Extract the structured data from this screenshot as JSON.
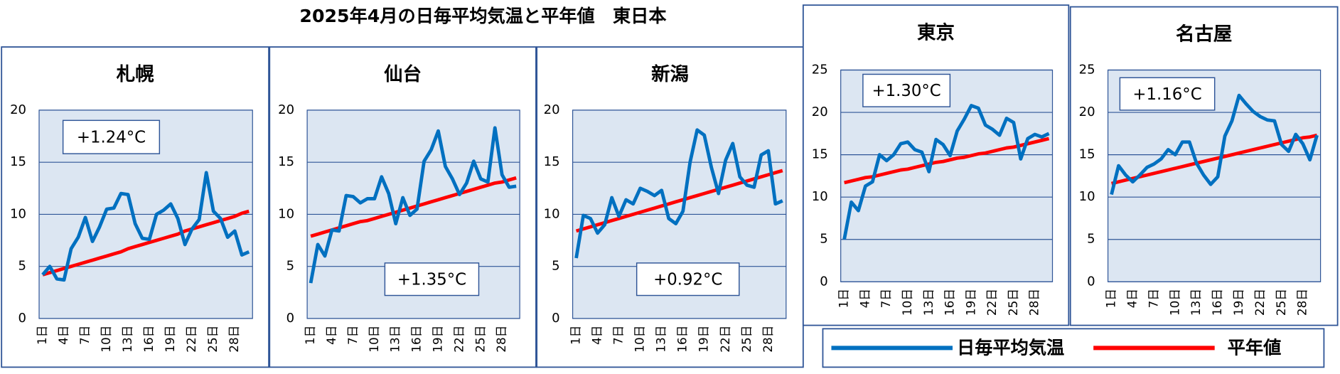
{
  "title": "2025年4月の日毎平均気温と平年値　東日本",
  "chart_data": [
    {
      "type": "line",
      "title": "札幌",
      "annotation": "+1.24°C",
      "grid": true,
      "categories": [
        "1日",
        null,
        null,
        "4日",
        null,
        null,
        "7日",
        null,
        null,
        "10日",
        null,
        null,
        "13日",
        null,
        null,
        "16日",
        null,
        null,
        "19日",
        null,
        null,
        "22日",
        null,
        null,
        "25日",
        null,
        null,
        "28日",
        null,
        null
      ],
      "ylim": [
        0,
        20
      ],
      "yticks": [
        0,
        5,
        10,
        15,
        20
      ],
      "series": [
        {
          "name": "日毎平均気温",
          "color": "#0070c0",
          "values": [
            4.2,
            5.0,
            3.8,
            3.7,
            6.7,
            7.8,
            9.7,
            7.4,
            8.8,
            10.5,
            10.6,
            12.0,
            11.9,
            9.1,
            7.7,
            7.6,
            10.0,
            10.4,
            11.0,
            9.6,
            7.1,
            8.6,
            9.5,
            14.0,
            10.3,
            9.6,
            7.8,
            8.4,
            6.1,
            6.4
          ]
        },
        {
          "name": "平年値",
          "color": "#ff0000",
          "values": [
            4.2,
            4.4,
            4.6,
            4.8,
            5.0,
            5.2,
            5.4,
            5.6,
            5.8,
            6.0,
            6.2,
            6.4,
            6.7,
            6.9,
            7.1,
            7.3,
            7.5,
            7.7,
            7.9,
            8.1,
            8.4,
            8.6,
            8.8,
            9.0,
            9.2,
            9.4,
            9.6,
            9.8,
            10.1,
            10.3
          ]
        }
      ]
    },
    {
      "type": "line",
      "title": "仙台",
      "annotation": "+1.35°C",
      "grid": true,
      "categories": [
        "1日",
        null,
        null,
        "4日",
        null,
        null,
        "7日",
        null,
        null,
        "10日",
        null,
        null,
        "13日",
        null,
        null,
        "16日",
        null,
        null,
        "19日",
        null,
        null,
        "22日",
        null,
        null,
        "25日",
        null,
        null,
        "28日",
        null,
        null
      ],
      "ylim": [
        0,
        20
      ],
      "yticks": [
        0,
        5,
        10,
        15,
        20
      ],
      "series": [
        {
          "name": "日毎平均気温",
          "color": "#0070c0",
          "values": [
            3.4,
            7.1,
            6.0,
            8.5,
            8.4,
            11.8,
            11.7,
            11.1,
            11.5,
            11.5,
            13.6,
            12.0,
            9.1,
            11.6,
            9.9,
            10.5,
            15.1,
            16.2,
            18.0,
            14.6,
            13.4,
            11.9,
            13.0,
            15.1,
            13.4,
            13.1,
            18.3,
            13.8,
            12.6,
            12.7
          ]
        },
        {
          "name": "平年値",
          "color": "#ff0000",
          "values": [
            7.9,
            8.1,
            8.3,
            8.5,
            8.7,
            8.9,
            9.1,
            9.3,
            9.4,
            9.6,
            9.8,
            10.0,
            10.2,
            10.4,
            10.6,
            10.8,
            11.0,
            11.2,
            11.4,
            11.6,
            11.8,
            12.0,
            12.2,
            12.4,
            12.6,
            12.8,
            13.0,
            13.1,
            13.3,
            13.5
          ]
        }
      ]
    },
    {
      "type": "line",
      "title": "新潟",
      "annotation": "+0.92°C",
      "grid": true,
      "categories": [
        "1日",
        null,
        null,
        "4日",
        null,
        null,
        "7日",
        null,
        null,
        "10日",
        null,
        null,
        "13日",
        null,
        null,
        "16日",
        null,
        null,
        "19日",
        null,
        null,
        "22日",
        null,
        null,
        "25日",
        null,
        null,
        "28日",
        null,
        null
      ],
      "ylim": [
        0,
        20
      ],
      "yticks": [
        0,
        5,
        10,
        15,
        20
      ],
      "series": [
        {
          "name": "日毎平均気温",
          "color": "#0070c0",
          "values": [
            5.8,
            9.9,
            9.6,
            8.2,
            9.0,
            11.6,
            9.8,
            11.4,
            11.0,
            12.5,
            12.2,
            11.8,
            12.3,
            9.6,
            9.1,
            10.3,
            15.0,
            18.1,
            17.6,
            14.5,
            12.0,
            15.2,
            16.8,
            13.6,
            12.8,
            12.6,
            15.7,
            16.1,
            11.0,
            11.3
          ]
        },
        {
          "name": "平年値",
          "color": "#ff0000",
          "values": [
            8.4,
            8.6,
            8.8,
            9.0,
            9.2,
            9.4,
            9.6,
            9.8,
            10.0,
            10.2,
            10.4,
            10.6,
            10.8,
            11.0,
            11.2,
            11.4,
            11.6,
            11.8,
            12.0,
            12.2,
            12.4,
            12.6,
            12.8,
            13.0,
            13.2,
            13.4,
            13.6,
            13.8,
            14.0,
            14.2
          ]
        }
      ]
    },
    {
      "type": "line",
      "title": "東京",
      "annotation": "+1.30°C",
      "grid": true,
      "categories": [
        "1日",
        null,
        null,
        "4日",
        null,
        null,
        "7日",
        null,
        null,
        "10日",
        null,
        null,
        "13日",
        null,
        null,
        "16日",
        null,
        null,
        "19日",
        null,
        null,
        "22日",
        null,
        null,
        "25日",
        null,
        null,
        "28日",
        null,
        null
      ],
      "ylim": [
        0,
        25
      ],
      "yticks": [
        0,
        5,
        10,
        15,
        20,
        25
      ],
      "series": [
        {
          "name": "日毎平均気温",
          "color": "#0070c0",
          "values": [
            5.0,
            9.4,
            8.4,
            11.3,
            11.8,
            15.0,
            14.3,
            15.0,
            16.3,
            16.5,
            15.6,
            15.3,
            13.0,
            16.8,
            16.2,
            14.9,
            17.8,
            19.2,
            20.8,
            20.5,
            18.5,
            18.0,
            17.3,
            19.3,
            18.8,
            14.5,
            16.9,
            17.4,
            17.1,
            17.5
          ]
        },
        {
          "name": "平年値",
          "color": "#ff0000",
          "values": [
            11.7,
            11.9,
            12.1,
            12.3,
            12.4,
            12.6,
            12.8,
            13.0,
            13.2,
            13.3,
            13.5,
            13.7,
            13.9,
            14.1,
            14.2,
            14.4,
            14.6,
            14.7,
            14.9,
            15.1,
            15.2,
            15.4,
            15.6,
            15.8,
            15.9,
            16.1,
            16.3,
            16.5,
            16.7,
            16.9
          ]
        }
      ]
    },
    {
      "type": "line",
      "title": "名古屋",
      "annotation": "+1.16°C",
      "grid": true,
      "categories": [
        "1日",
        null,
        null,
        "4日",
        null,
        null,
        "7日",
        null,
        null,
        "10日",
        null,
        null,
        "13日",
        null,
        null,
        "16日",
        null,
        null,
        "19日",
        null,
        null,
        "22日",
        null,
        null,
        "25日",
        null,
        null,
        "28日",
        null,
        null
      ],
      "ylim": [
        0,
        25
      ],
      "yticks": [
        0,
        5,
        10,
        15,
        20,
        25
      ],
      "series": [
        {
          "name": "日毎平均気温",
          "color": "#0070c0",
          "values": [
            10.3,
            13.7,
            12.6,
            11.8,
            12.6,
            13.5,
            13.9,
            14.5,
            15.6,
            15.0,
            16.5,
            16.5,
            14.0,
            12.6,
            11.5,
            12.4,
            17.2,
            19.0,
            22.0,
            21.0,
            20.1,
            19.5,
            19.1,
            19.0,
            16.2,
            15.4,
            17.4,
            16.3,
            14.4,
            17.3
          ]
        },
        {
          "name": "平年値",
          "color": "#ff0000",
          "values": [
            11.6,
            11.8,
            12.0,
            12.2,
            12.4,
            12.6,
            12.8,
            13.0,
            13.2,
            13.4,
            13.6,
            13.8,
            14.0,
            14.2,
            14.4,
            14.6,
            14.8,
            15.0,
            15.2,
            15.4,
            15.6,
            15.8,
            16.0,
            16.2,
            16.4,
            16.6,
            16.8,
            17.0,
            17.1,
            17.3
          ]
        }
      ]
    }
  ]
}
